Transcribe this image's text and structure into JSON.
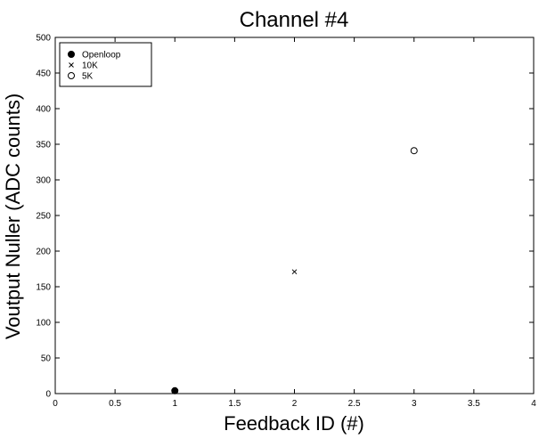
{
  "chart_data": {
    "type": "scatter",
    "title": "Channel #4",
    "xlabel": "Feedback ID (#)",
    "ylabel": "Voutput Nuller (ADC counts)",
    "xlim": [
      0,
      4
    ],
    "ylim": [
      0,
      500
    ],
    "xticks": [
      0,
      0.5,
      1,
      1.5,
      2,
      2.5,
      3,
      3.5,
      4
    ],
    "xtick_labels": [
      "0",
      "0.5",
      "1",
      "1.5",
      "2",
      "2.5",
      "3",
      "3.5",
      "4"
    ],
    "yticks": [
      0,
      50,
      100,
      150,
      200,
      250,
      300,
      350,
      400,
      450,
      500
    ],
    "ytick_labels": [
      "0",
      "50",
      "100",
      "150",
      "200",
      "250",
      "300",
      "350",
      "400",
      "450",
      "500"
    ],
    "grid": false,
    "legend_position": "top-left",
    "series": [
      {
        "name": "Openloop",
        "marker": "filled-circle",
        "color": "#000000",
        "points": [
          {
            "x": 1,
            "y": 4
          }
        ]
      },
      {
        "name": "10K",
        "marker": "x",
        "color": "#000000",
        "points": [
          {
            "x": 2,
            "y": 171
          }
        ]
      },
      {
        "name": "5K",
        "marker": "open-circle",
        "color": "#000000",
        "points": [
          {
            "x": 3,
            "y": 341
          }
        ]
      }
    ]
  }
}
